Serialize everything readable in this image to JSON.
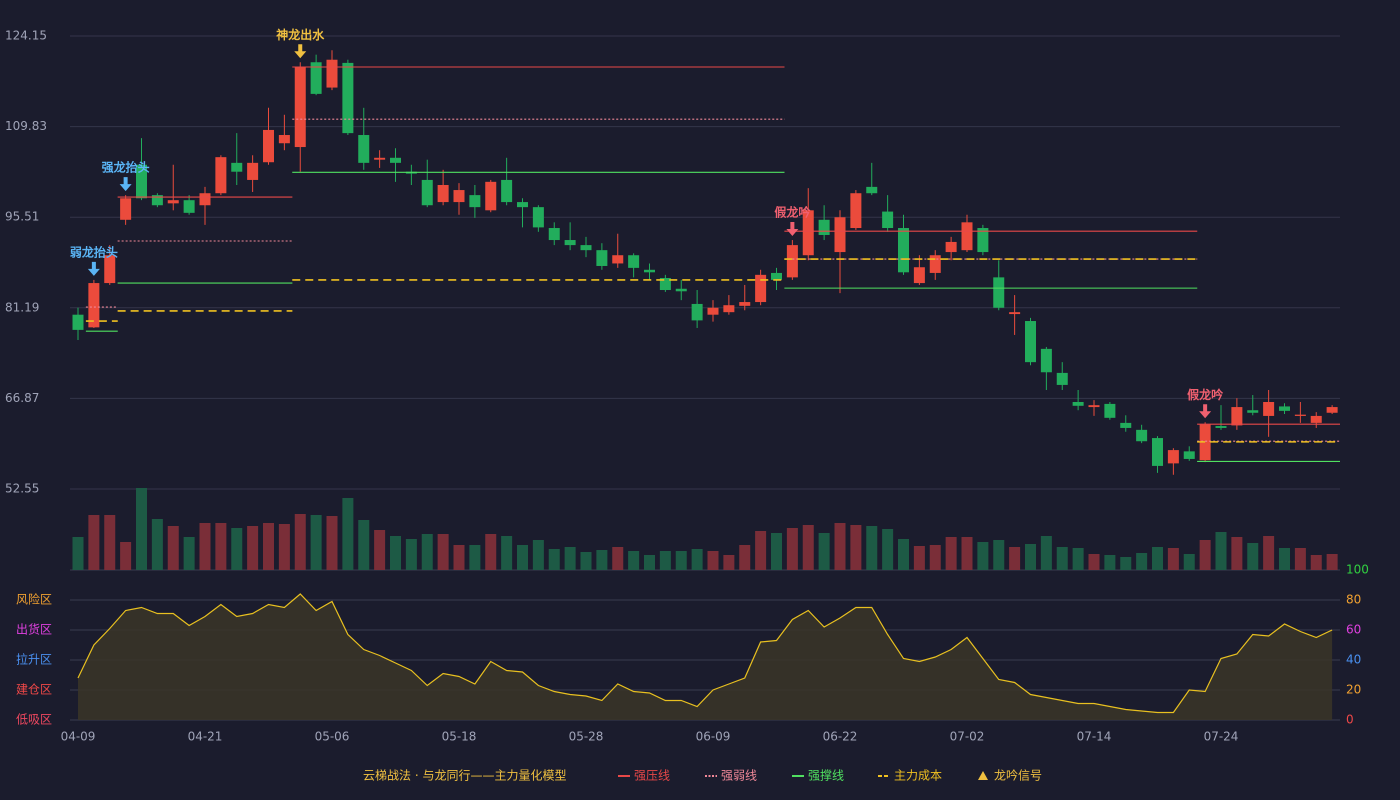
{
  "chart_data": {
    "type": "candlestick",
    "categories": [
      "04-09",
      null,
      null,
      null,
      null,
      null,
      null,
      null,
      "04-21",
      null,
      null,
      null,
      null,
      null,
      null,
      null,
      "05-06",
      null,
      null,
      null,
      null,
      null,
      null,
      null,
      "05-18",
      null,
      null,
      null,
      null,
      null,
      null,
      null,
      "05-28",
      null,
      null,
      null,
      null,
      null,
      null,
      null,
      "06-09",
      null,
      null,
      null,
      null,
      null,
      null,
      null,
      "06-22",
      null,
      null,
      null,
      null,
      null,
      null,
      null,
      "07-02",
      null,
      null,
      null,
      null,
      null,
      null,
      null,
      "07-14",
      null,
      null,
      null,
      null,
      null,
      null,
      null,
      "07-24",
      null,
      null,
      null,
      null,
      null,
      null,
      null
    ],
    "open": [
      80.1,
      78.1,
      85.1,
      95.1,
      103.8,
      99.0,
      97.7,
      98.2,
      97.4,
      99.3,
      104.1,
      101.4,
      104.2,
      107.2,
      106.6,
      120.0,
      116.0,
      119.9,
      108.5,
      104.6,
      104.9,
      102.7,
      101.4,
      97.9,
      97.9,
      99.0,
      96.6,
      101.4,
      97.9,
      97.1,
      93.8,
      91.9,
      91.1,
      90.3,
      88.2,
      89.5,
      87.2,
      85.9,
      84.2,
      81.8,
      80.1,
      80.5,
      81.5,
      82.1,
      86.7,
      86.0,
      89.5,
      95.1,
      90.0,
      93.8,
      100.3,
      96.4,
      93.8,
      85.1,
      86.7,
      90.0,
      90.3,
      93.8,
      86.0,
      80.2,
      79.1,
      74.7,
      70.9,
      66.3,
      65.5,
      66.0,
      63.0,
      61.9,
      60.6,
      56.6,
      58.5,
      57.1,
      62.5,
      62.6,
      65.0,
      64.1,
      65.6,
      64.1,
      63.0,
      64.6
    ],
    "high": [
      81.2,
      85.6,
      91.1,
      99.0,
      108.0,
      99.3,
      103.8,
      99.0,
      100.3,
      105.3,
      108.8,
      105.3,
      112.8,
      111.7,
      120.0,
      121.2,
      121.9,
      120.4,
      112.8,
      106.1,
      106.4,
      103.8,
      104.6,
      103.0,
      100.9,
      100.6,
      101.4,
      104.9,
      98.5,
      97.4,
      94.7,
      94.7,
      92.4,
      91.4,
      92.9,
      89.8,
      88.2,
      86.4,
      85.6,
      84.0,
      82.4,
      83.2,
      84.8,
      87.2,
      87.5,
      91.9,
      100.1,
      97.4,
      96.6,
      99.8,
      104.1,
      99.0,
      95.9,
      89.5,
      90.3,
      92.4,
      95.9,
      94.3,
      88.7,
      83.2,
      79.6,
      75.0,
      72.6,
      68.2,
      66.6,
      66.3,
      64.2,
      62.7,
      60.9,
      59.0,
      59.3,
      63.1,
      65.8,
      66.9,
      67.4,
      68.2,
      66.1,
      66.3,
      64.7,
      65.8
    ],
    "low": [
      76.1,
      78.0,
      84.8,
      94.3,
      98.2,
      97.1,
      96.6,
      95.9,
      94.3,
      99.0,
      100.6,
      99.5,
      103.8,
      106.1,
      102.7,
      114.8,
      115.6,
      108.5,
      103.0,
      103.3,
      101.1,
      100.6,
      97.1,
      97.4,
      95.9,
      95.4,
      96.3,
      97.4,
      93.9,
      93.2,
      91.1,
      90.3,
      89.2,
      87.2,
      87.5,
      86.0,
      85.6,
      83.7,
      82.4,
      78.0,
      79.0,
      80.1,
      80.8,
      81.6,
      84.0,
      85.6,
      88.7,
      91.9,
      83.5,
      93.5,
      99.0,
      93.2,
      86.4,
      84.8,
      85.6,
      88.7,
      90.0,
      89.5,
      80.8,
      76.9,
      72.1,
      68.2,
      68.2,
      65.0,
      64.1,
      63.5,
      61.6,
      59.8,
      55.1,
      54.8,
      57.0,
      56.8,
      61.9,
      61.9,
      64.2,
      60.8,
      64.4,
      63.0,
      62.2,
      64.4
    ],
    "close": [
      77.7,
      85.1,
      89.5,
      98.5,
      98.5,
      97.4,
      98.2,
      96.2,
      99.3,
      105.0,
      102.7,
      104.1,
      109.3,
      108.5,
      119.2,
      115.0,
      120.4,
      108.8,
      104.1,
      104.9,
      104.1,
      102.4,
      97.4,
      100.6,
      99.8,
      97.1,
      101.1,
      97.9,
      97.1,
      93.9,
      91.9,
      91.1,
      90.3,
      87.8,
      89.5,
      87.5,
      86.8,
      84.0,
      83.8,
      79.2,
      81.2,
      81.6,
      82.1,
      86.4,
      85.6,
      91.1,
      96.6,
      92.7,
      95.5,
      99.3,
      99.3,
      93.8,
      86.8,
      87.6,
      89.5,
      91.6,
      94.7,
      90.0,
      81.2,
      80.5,
      72.6,
      71.0,
      69.0,
      65.7,
      65.8,
      63.8,
      62.2,
      60.1,
      56.2,
      58.7,
      57.3,
      62.8,
      62.2,
      65.5,
      64.6,
      66.3,
      64.9,
      64.3,
      64.1,
      65.5
    ],
    "volume": [
      33,
      55,
      55,
      28,
      82,
      51,
      44,
      33,
      47,
      47,
      42,
      44,
      47,
      46,
      56,
      55,
      54,
      72,
      50,
      40,
      34,
      31,
      36,
      36,
      25,
      25,
      36,
      34,
      25,
      30,
      21,
      23,
      18,
      20,
      23,
      19,
      15,
      19,
      19,
      21,
      19,
      15,
      25,
      39,
      37,
      42,
      45,
      37,
      47,
      45,
      44,
      41,
      31,
      24,
      25,
      33,
      33,
      28,
      30,
      23,
      26,
      34,
      23,
      22,
      16,
      15,
      13,
      17,
      23,
      22,
      16,
      30,
      38,
      33,
      27,
      34,
      22,
      22,
      15,
      16
    ],
    "up_color": "#eb4b3c",
    "down_color": "#22ad5c",
    "up_volume_color": "#7a2e38",
    "down_volume_color": "#1d5a45",
    "ylim": [
      52.55,
      124.15
    ],
    "yticks": [
      52.55,
      66.87,
      81.19,
      95.51,
      109.83,
      124.15
    ],
    "grid": true,
    "indicator": {
      "values": [
        28,
        50,
        61,
        73,
        75,
        71,
        71,
        63,
        69,
        77,
        69,
        71,
        77,
        75,
        84,
        73,
        79,
        57,
        47,
        43,
        38,
        33,
        23,
        31,
        29,
        24,
        39,
        33,
        32,
        23,
        19,
        17,
        16,
        13,
        24,
        19,
        18,
        13,
        13,
        9,
        20,
        24,
        28,
        52,
        53,
        67,
        73,
        62,
        68,
        75,
        75,
        57,
        41,
        39,
        42,
        47,
        55,
        41,
        27,
        25,
        17,
        15,
        13,
        11,
        11,
        9,
        7,
        6,
        5,
        5,
        20,
        19,
        41,
        44,
        57,
        56,
        64,
        59,
        55,
        60
      ],
      "color": "#e8c020",
      "ylim": [
        0,
        100
      ],
      "yticks": [
        {
          "value": 0,
          "color": "#f04848"
        },
        {
          "value": 20,
          "color": "#f0a030"
        },
        {
          "value": 40,
          "color": "#4a90f0"
        },
        {
          "value": 60,
          "color": "#e040e0"
        },
        {
          "value": 80,
          "color": "#f0a030"
        },
        {
          "value": 100,
          "color": "#30d040"
        }
      ],
      "zones": [
        {
          "label": "风险区",
          "value": 80,
          "color": "#f0a030"
        },
        {
          "label": "出货区",
          "value": 60,
          "color": "#e040e0"
        },
        {
          "label": "拉升区",
          "value": 40,
          "color": "#4a90f0"
        },
        {
          "label": "建仓区",
          "value": 20,
          "color": "#f04848"
        },
        {
          "label": "低吸区",
          "value": 0,
          "color": "#f04860"
        }
      ]
    },
    "levels": [
      {
        "from": 1,
        "to": 2,
        "weak": 81.3,
        "support": 77.5,
        "cost": 79.1
      },
      {
        "from": 3,
        "to": 13,
        "resistance": 98.7,
        "weak": 91.75,
        "support": 85.1,
        "cost": 80.7
      },
      {
        "from": 14,
        "to": 44,
        "resistance": 119.25,
        "weak": 111.0,
        "support": 102.6,
        "cost": 85.6
      },
      {
        "from": 45,
        "to": 70,
        "resistance": 93.3,
        "weak": 88.9,
        "support": 84.3,
        "cost": 88.9
      },
      {
        "from": 71,
        "to": 79,
        "resistance": 62.8,
        "weak": 60.1,
        "support": 56.9,
        "cost": 60.0
      }
    ],
    "signals": [
      {
        "index": 1,
        "label": "弱龙抬头",
        "color": "#5ab4f5"
      },
      {
        "index": 3,
        "label": "强龙抬头",
        "color": "#5ab4f5"
      },
      {
        "index": 14,
        "label": "神龙出水",
        "color": "#f0c040"
      },
      {
        "index": 45,
        "label": "假龙吟",
        "color": "#f06070"
      },
      {
        "index": 71,
        "label": "假龙吟",
        "color": "#f06070"
      }
    ],
    "legend_title": "云梯战法 · 与龙同行——主力量化模型",
    "legend_title_color": "#f0c040",
    "legend": [
      {
        "key": "resistance",
        "name": "强压线",
        "color": "#e84848",
        "style": "solid"
      },
      {
        "key": "weak",
        "name": "强弱线",
        "color": "#f08898",
        "style": "dotted"
      },
      {
        "key": "support",
        "name": "强撑线",
        "color": "#50e060",
        "style": "solid"
      },
      {
        "key": "cost",
        "name": "主力成本",
        "color": "#f0c020",
        "style": "dashed"
      },
      {
        "key": "signal",
        "name": "龙吟信号",
        "color": "#f0c040",
        "style": "triangle"
      }
    ]
  }
}
